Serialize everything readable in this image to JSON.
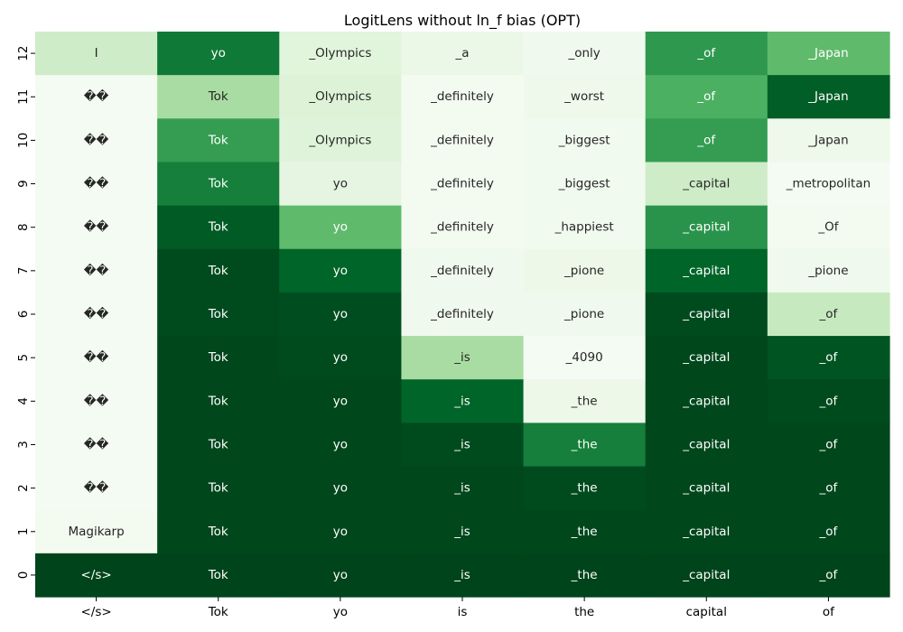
{
  "chart_data": {
    "type": "heatmap",
    "title": "LogitLens without ln_f bias (OPT)",
    "xlabel": "",
    "ylabel": "",
    "colormap": "Greens",
    "colorbar": false,
    "x_categories": [
      "</s>",
      "Tok",
      "yo",
      "is",
      "the",
      "capital",
      "of"
    ],
    "y_categories": [
      "0",
      "1",
      "2",
      "3",
      "4",
      "5",
      "6",
      "7",
      "8",
      "9",
      "10",
      "11",
      "12"
    ],
    "rows": [
      {
        "layer": "12",
        "labels": [
          "I",
          "yo",
          "_Olympics",
          "_a",
          "_only",
          "_of",
          "_Japan"
        ],
        "values": [
          0.22,
          0.82,
          0.14,
          0.08,
          0.05,
          0.7,
          0.55
        ]
      },
      {
        "layer": "11",
        "labels": [
          "��",
          "Tok",
          "_Olympics",
          "_definitely",
          "_worst",
          "_of",
          "_Japan"
        ],
        "values": [
          0.02,
          0.35,
          0.16,
          0.03,
          0.06,
          0.6,
          0.92
        ]
      },
      {
        "layer": "10",
        "labels": [
          "��",
          "Tok",
          "_Olympics",
          "_definitely",
          "_biggest",
          "_of",
          "_Japan"
        ],
        "values": [
          0.02,
          0.68,
          0.15,
          0.03,
          0.04,
          0.68,
          0.06
        ]
      },
      {
        "layer": "9",
        "labels": [
          "��",
          "Tok",
          "yo",
          "_definitely",
          "_biggest",
          "_capital",
          "_metropolitan"
        ],
        "values": [
          0.02,
          0.8,
          0.12,
          0.03,
          0.04,
          0.22,
          0.02
        ]
      },
      {
        "layer": "8",
        "labels": [
          "��",
          "Tok",
          "yo",
          "_definitely",
          "_happiest",
          "_capital",
          "_Of"
        ],
        "values": [
          0.02,
          0.93,
          0.55,
          0.03,
          0.04,
          0.72,
          0.03
        ]
      },
      {
        "layer": "7",
        "labels": [
          "��",
          "Tok",
          "yo",
          "_definitely",
          "_pione",
          "_capital",
          "_pione"
        ],
        "values": [
          0.02,
          0.98,
          0.9,
          0.05,
          0.07,
          0.9,
          0.05
        ]
      },
      {
        "layer": "6",
        "labels": [
          "��",
          "Tok",
          "yo",
          "_definitely",
          "_pione",
          "_capital",
          "_of"
        ],
        "values": [
          0.02,
          0.98,
          0.97,
          0.05,
          0.05,
          0.98,
          0.25
        ]
      },
      {
        "layer": "5",
        "labels": [
          "��",
          "Tok",
          "yo",
          "_is",
          "_4090",
          "_capital",
          "_of"
        ],
        "values": [
          0.02,
          0.99,
          0.98,
          0.35,
          0.02,
          0.99,
          0.95
        ]
      },
      {
        "layer": "4",
        "labels": [
          "��",
          "Tok",
          "yo",
          "_is",
          "_the",
          "_capital",
          "_of"
        ],
        "values": [
          0.02,
          0.99,
          0.99,
          0.9,
          0.07,
          0.99,
          0.98
        ]
      },
      {
        "layer": "3",
        "labels": [
          "��",
          "Tok",
          "yo",
          "_is",
          "_the",
          "_capital",
          "_of"
        ],
        "values": [
          0.02,
          0.99,
          0.99,
          0.98,
          0.8,
          0.99,
          0.99
        ]
      },
      {
        "layer": "2",
        "labels": [
          "��",
          "Tok",
          "yo",
          "_is",
          "_the",
          "_capital",
          "_of"
        ],
        "values": [
          0.02,
          0.99,
          0.99,
          0.99,
          0.98,
          0.99,
          0.99
        ]
      },
      {
        "layer": "1",
        "labels": [
          "Magikarp",
          "Tok",
          "yo",
          "_is",
          "_the",
          "_capital",
          "_of"
        ],
        "values": [
          0.03,
          0.99,
          0.99,
          0.99,
          0.99,
          0.99,
          0.99
        ]
      },
      {
        "layer": "0",
        "labels": [
          "</s>",
          "Tok",
          "yo",
          "_is",
          "_the",
          "_capital",
          "_of"
        ],
        "values": [
          1.0,
          1.0,
          1.0,
          1.0,
          1.0,
          1.0,
          1.0
        ]
      }
    ]
  }
}
